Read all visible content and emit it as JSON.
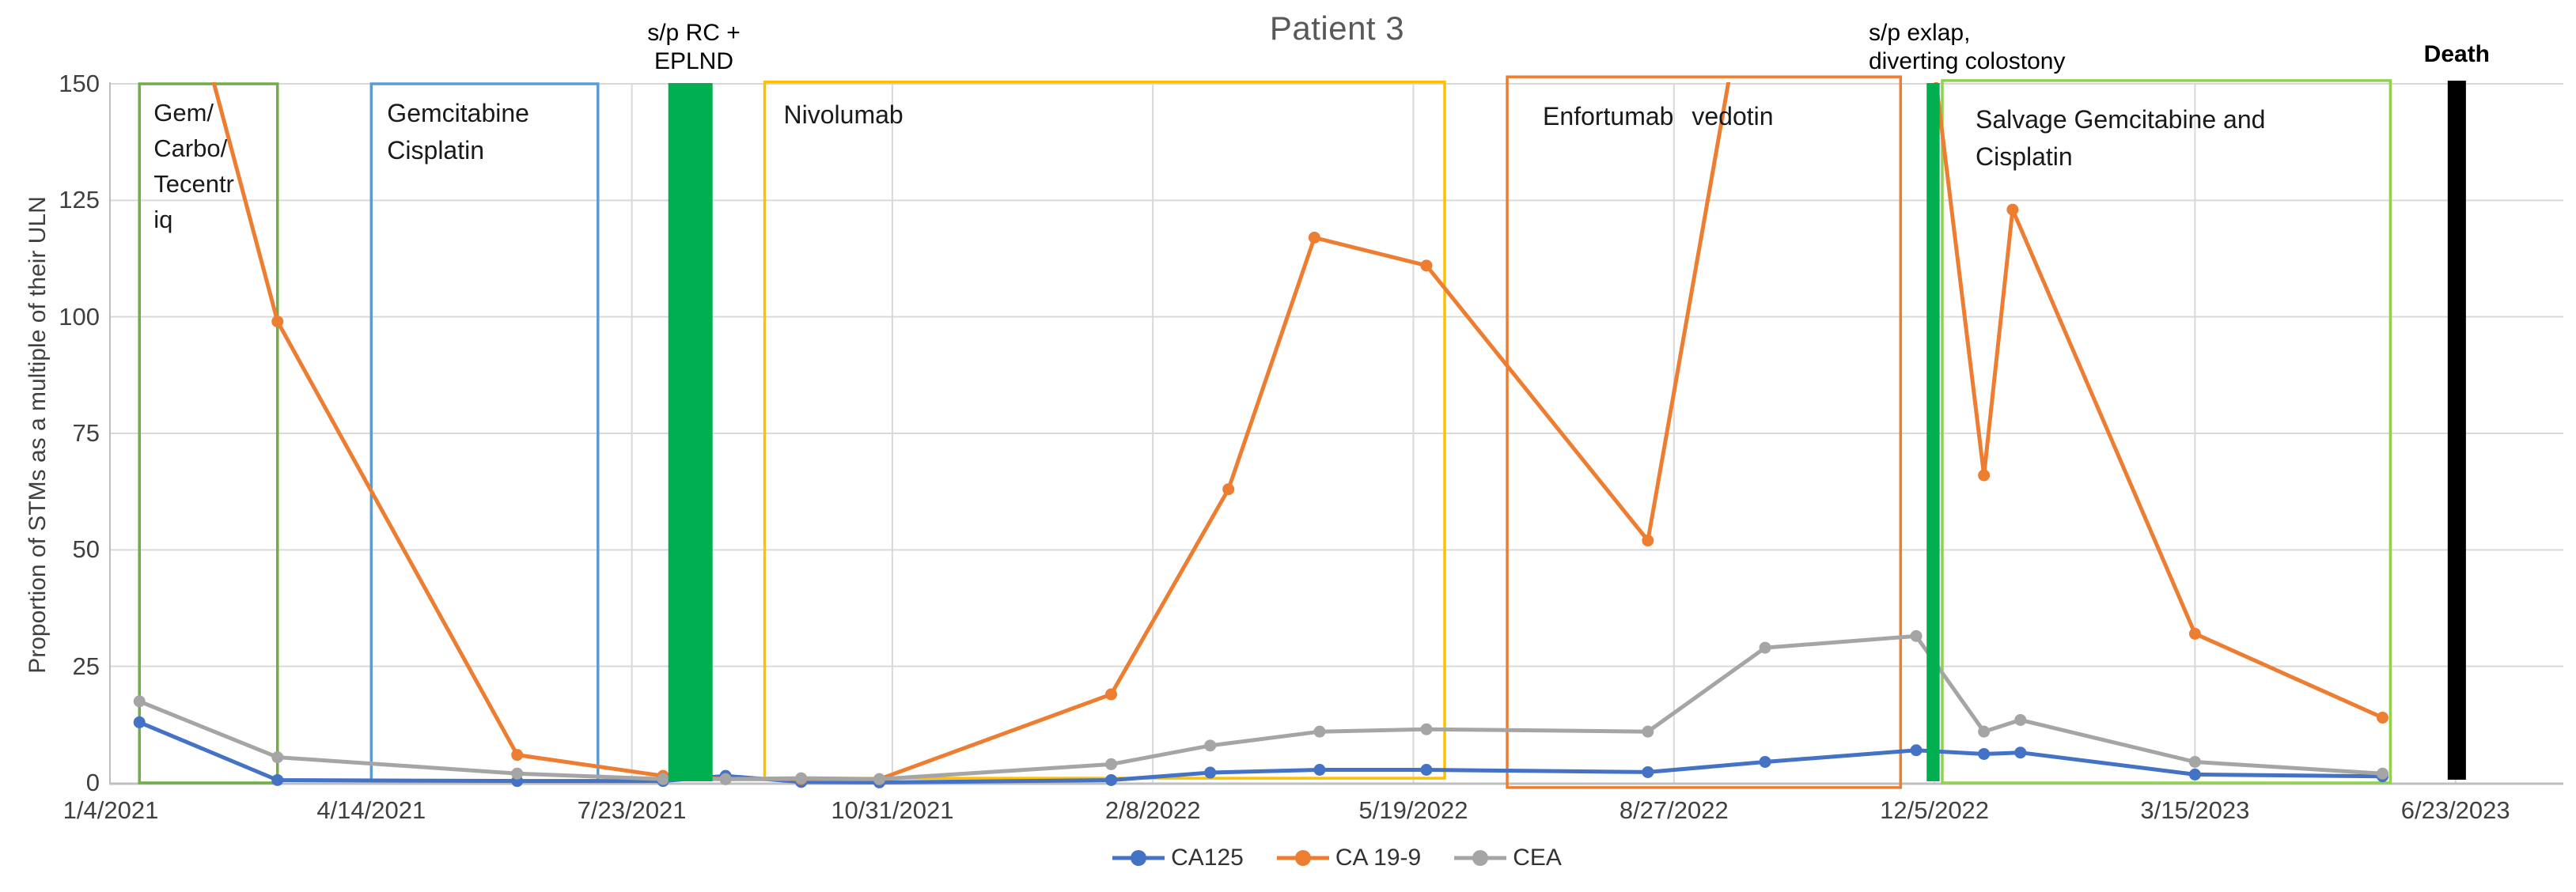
{
  "title": "Patient 3",
  "y_axis": {
    "label": "Proportion of STMs as a multiple of their ULN",
    "ticks": [
      0,
      25,
      50,
      75,
      100,
      125,
      150
    ],
    "min": 0,
    "max": 150
  },
  "x_axis": {
    "tick_labels": [
      "1/4/2021",
      "4/14/2021",
      "7/23/2021",
      "10/31/2021",
      "2/8/2022",
      "5/19/2022",
      "8/27/2022",
      "12/5/2022",
      "3/15/2023",
      "6/23/2023"
    ],
    "tick_interval_days": 100
  },
  "legend": [
    {
      "label": "CA125",
      "color": "#4472C4"
    },
    {
      "label": "CA 19-9",
      "color": "#ED7D31"
    },
    {
      "label": "CEA",
      "color": "#A5A5A5"
    }
  ],
  "chart_data": {
    "type": "line",
    "x_unit": "days since 1/4/2021 (date axis, gridline every 100 days)",
    "ylim": [
      0,
      150
    ],
    "grid": true,
    "legend_position": "bottom",
    "series": [
      {
        "name": "CA125",
        "color": "#4472C4",
        "points": [
          {
            "day": 11,
            "value": 13
          },
          {
            "day": 64,
            "value": 0.6
          },
          {
            "day": 156,
            "value": 0.4
          },
          {
            "day": 212,
            "value": 0.4
          },
          {
            "day": 236,
            "value": 1.5
          },
          {
            "day": 265,
            "value": 0.2
          },
          {
            "day": 295,
            "value": 0.1
          },
          {
            "day": 384,
            "value": 0.6
          },
          {
            "day": 422,
            "value": 2.2
          },
          {
            "day": 464,
            "value": 2.8
          },
          {
            "day": 505,
            "value": 2.8
          },
          {
            "day": 590,
            "value": 2.3
          },
          {
            "day": 635,
            "value": 4.5
          },
          {
            "day": 693,
            "value": 7
          },
          {
            "day": 719,
            "value": 6.2
          },
          {
            "day": 733,
            "value": 6.5
          },
          {
            "day": 800,
            "value": 1.8
          },
          {
            "day": 872,
            "value": 1.4
          }
        ]
      },
      {
        "name": "CA 19-9",
        "color": "#ED7D31",
        "note": "values above 150 are clipped at the axis maximum",
        "points": [
          {
            "day": 11,
            "value": 210
          },
          {
            "day": 64,
            "value": 99
          },
          {
            "day": 156,
            "value": 6
          },
          {
            "day": 212,
            "value": 1.5
          },
          {
            "day": 236,
            "value": 0.8
          },
          {
            "day": 265,
            "value": 0.8
          },
          {
            "day": 295,
            "value": 0.8
          },
          {
            "day": 384,
            "value": 19
          },
          {
            "day": 429,
            "value": 63
          },
          {
            "day": 462,
            "value": 117
          },
          {
            "day": 505,
            "value": 111
          },
          {
            "day": 590,
            "value": 52
          },
          {
            "day": 668,
            "value": 300
          },
          {
            "day": 719,
            "value": 66
          },
          {
            "day": 730,
            "value": 123
          },
          {
            "day": 800,
            "value": 32
          },
          {
            "day": 872,
            "value": 14
          }
        ]
      },
      {
        "name": "CEA",
        "color": "#A5A5A5",
        "points": [
          {
            "day": 11,
            "value": 17.5
          },
          {
            "day": 64,
            "value": 5.5
          },
          {
            "day": 156,
            "value": 2
          },
          {
            "day": 212,
            "value": 0.8
          },
          {
            "day": 236,
            "value": 0.8
          },
          {
            "day": 265,
            "value": 1
          },
          {
            "day": 295,
            "value": 0.8
          },
          {
            "day": 384,
            "value": 4
          },
          {
            "day": 422,
            "value": 8
          },
          {
            "day": 464,
            "value": 11
          },
          {
            "day": 505,
            "value": 11.5
          },
          {
            "day": 590,
            "value": 11
          },
          {
            "day": 635,
            "value": 29
          },
          {
            "day": 693,
            "value": 31.5
          },
          {
            "day": 719,
            "value": 11
          },
          {
            "day": 733,
            "value": 13.5
          },
          {
            "day": 800,
            "value": 4.5
          },
          {
            "day": 872,
            "value": 2
          }
        ]
      }
    ],
    "annotations": {
      "treatment_boxes": [
        {
          "label_lines": [
            "Gem/",
            "Carbo/",
            "Tecentr",
            "iq"
          ],
          "color": "#70AD47",
          "start_day": 11,
          "end_day": 64
        },
        {
          "label_lines": [
            "Gemcitabine",
            "Cisplatin"
          ],
          "color": "#5B9BD5",
          "start_day": 100,
          "end_day": 187
        },
        {
          "label_lines": [
            "Nivolumab"
          ],
          "color": "#FFC000",
          "start_day": 251,
          "end_day": 512
        },
        {
          "label_lines": [
            "Enfortumab vedotin"
          ],
          "color": "#ED7D31",
          "start_day": 536,
          "end_day": 687
        },
        {
          "label_lines": [
            "Salvage Gemcitabine and",
            "Cisplatin"
          ],
          "color": "#92D050",
          "start_day": 703,
          "end_day": 875
        }
      ],
      "surgery_bars": [
        {
          "label_lines": [
            "s/p RC +",
            "EPLND"
          ],
          "fill": "#00B050",
          "start_day": 214,
          "end_day": 231
        },
        {
          "label_lines": [
            "s/p exlap,",
            "diverting colostony"
          ],
          "fill": "#00B050",
          "start_day": 697,
          "end_day": 702
        }
      ],
      "death_marker": {
        "label": "Death",
        "fill": "#000000",
        "start_day": 897,
        "end_day": 904
      }
    }
  },
  "colors": {
    "gridline": "#D9D9D9",
    "axis_line": "#BFBFBF",
    "tick_text": "#404040",
    "title_text": "#595959"
  }
}
